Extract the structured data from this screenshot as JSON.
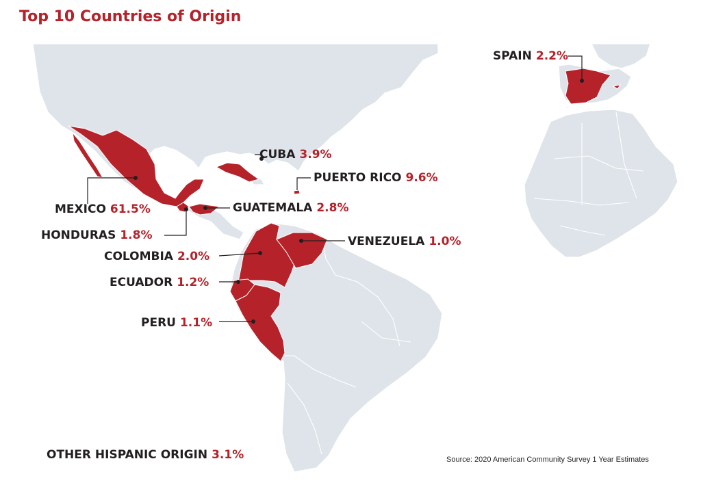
{
  "title": "Top 10 Countries of Origin",
  "colors": {
    "highlight": "#b5222a",
    "land": "#dfe4ea",
    "border": "#ffffff",
    "text": "#231f20"
  },
  "countries": {
    "spain": {
      "name": "SPAIN",
      "pct": "2.2%",
      "value": 2.2
    },
    "cuba": {
      "name": "CUBA",
      "pct": "3.9%",
      "value": 3.9
    },
    "puerto_rico": {
      "name": "PUERTO RICO",
      "pct": "9.6%",
      "value": 9.6
    },
    "mexico": {
      "name": "MEXICO",
      "pct": "61.5%",
      "value": 61.5
    },
    "guatemala": {
      "name": "GUATEMALA",
      "pct": "2.8%",
      "value": 2.8
    },
    "honduras": {
      "name": "HONDURAS",
      "pct": "1.8%",
      "value": 1.8
    },
    "venezuela": {
      "name": "VENEZUELA",
      "pct": "1.0%",
      "value": 1.0
    },
    "colombia": {
      "name": "COLOMBIA",
      "pct": "2.0%",
      "value": 2.0
    },
    "ecuador": {
      "name": "ECUADOR",
      "pct": "1.2%",
      "value": 1.2
    },
    "peru": {
      "name": "PERU",
      "pct": "1.1%",
      "value": 1.1
    }
  },
  "other": {
    "name": "OTHER HISPANIC ORIGIN",
    "pct": "3.1%",
    "value": 3.1
  },
  "source": "Source: 2020 American Community Survey 1 Year Estimates"
}
